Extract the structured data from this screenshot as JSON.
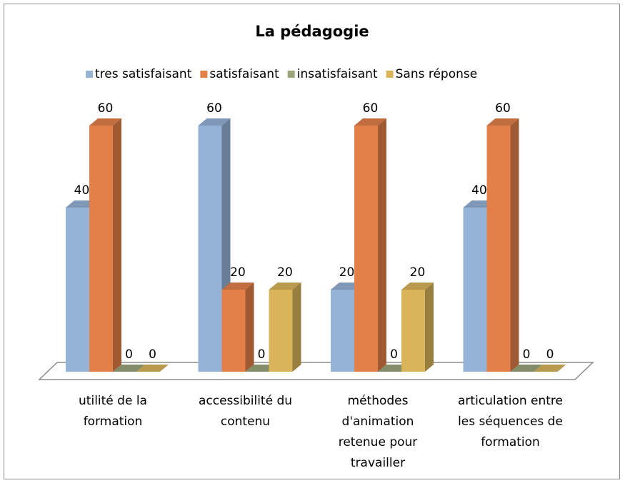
{
  "chart_data": {
    "type": "bar3d",
    "title": "La pédagogie",
    "categories": [
      "utilité de la formation",
      "accessibilité du contenu",
      "méthodes d'animation retenue pour travailler",
      "articulation entre les séquences de formation"
    ],
    "series": [
      {
        "name": "tres satisfaisant",
        "color": "#95b3d7",
        "values": [
          40,
          60,
          20,
          40
        ]
      },
      {
        "name": "satisfaisant",
        "color": "#e3804a",
        "values": [
          60,
          20,
          60,
          60
        ]
      },
      {
        "name": "insatisfaisant",
        "color": "#9aa67a",
        "values": [
          0,
          0,
          0,
          0
        ]
      },
      {
        "name": "Sans réponse",
        "color": "#d9b45a",
        "values": [
          0,
          20,
          20,
          0
        ]
      }
    ],
    "ylim": [
      0,
      60
    ],
    "legend": "top"
  }
}
